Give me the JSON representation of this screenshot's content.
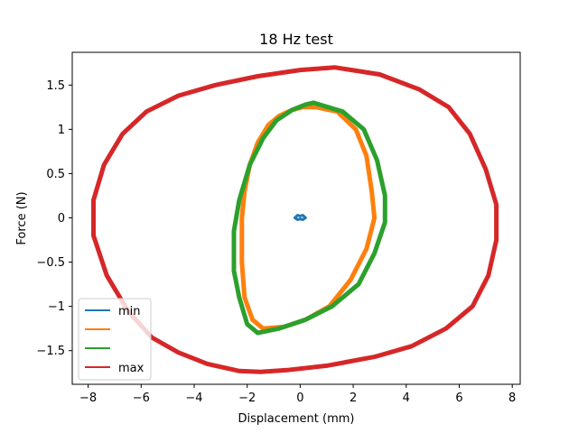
{
  "chart_data": {
    "type": "line",
    "title": "18 Hz test",
    "xlabel": "Displacement (mm)",
    "ylabel": "Force (N)",
    "xlim": [
      -8.6,
      8.3
    ],
    "ylim": [
      -1.88,
      1.87
    ],
    "xticks": [
      -8,
      -6,
      -4,
      -2,
      0,
      2,
      4,
      6,
      8
    ],
    "yticks": [
      -1.5,
      -1.0,
      -0.5,
      0.0,
      0.5,
      1.0,
      1.5
    ],
    "legend_position": "lower-left",
    "grid": false,
    "series": [
      {
        "name": "min",
        "color": "#1f77b4",
        "width": 3,
        "x": [
          -0.2,
          -0.1,
          0.0,
          0.1,
          0.2,
          0.1,
          0.0,
          -0.1,
          -0.2
        ],
        "y": [
          0.0,
          0.03,
          0.02,
          0.03,
          0.0,
          -0.02,
          -0.01,
          -0.02,
          0.0
        ]
      },
      {
        "name": "",
        "color": "#ff7f0e",
        "width": 5,
        "x": [
          0.6,
          1.4,
          2.1,
          2.5,
          2.7,
          2.8,
          2.5,
          1.9,
          1.1,
          0.2,
          -0.6,
          -1.4,
          -1.8,
          -2.1,
          -2.2,
          -2.2,
          -2.1,
          -1.9,
          -1.6,
          -1.2,
          -0.8,
          -0.3,
          0.1,
          0.6
        ],
        "y": [
          1.25,
          1.2,
          1.0,
          0.7,
          0.3,
          0.0,
          -0.35,
          -0.7,
          -1.0,
          -1.15,
          -1.23,
          -1.25,
          -1.15,
          -0.9,
          -0.5,
          0.0,
          0.3,
          0.6,
          0.85,
          1.05,
          1.15,
          1.22,
          1.25,
          1.25
        ]
      },
      {
        "name": "",
        "color": "#2ca02c",
        "width": 5,
        "x": [
          0.5,
          1.6,
          2.4,
          2.9,
          3.2,
          3.2,
          2.8,
          2.2,
          1.2,
          0.2,
          -0.8,
          -1.6,
          -2.0,
          -2.3,
          -2.5,
          -2.5,
          -2.3,
          -1.9,
          -1.4,
          -0.9,
          -0.3,
          0.2,
          0.5
        ],
        "y": [
          1.3,
          1.2,
          1.0,
          0.65,
          0.25,
          -0.05,
          -0.4,
          -0.75,
          -1.0,
          -1.15,
          -1.25,
          -1.3,
          -1.2,
          -0.9,
          -0.6,
          -0.15,
          0.2,
          0.6,
          0.9,
          1.1,
          1.22,
          1.28,
          1.3
        ]
      },
      {
        "name": "max",
        "color": "#d62728",
        "width": 5,
        "x": [
          1.3,
          3.0,
          4.5,
          5.6,
          6.4,
          7.0,
          7.4,
          7.4,
          7.1,
          6.5,
          5.5,
          4.2,
          2.8,
          1.0,
          -0.5,
          -1.5,
          -2.3,
          -3.5,
          -4.6,
          -5.6,
          -6.5,
          -7.3,
          -7.8,
          -7.8,
          -7.4,
          -6.7,
          -5.8,
          -4.6,
          -3.2,
          -1.6,
          0.0,
          1.3
        ],
        "y": [
          1.7,
          1.62,
          1.45,
          1.25,
          0.95,
          0.55,
          0.15,
          -0.25,
          -0.65,
          -1.0,
          -1.25,
          -1.45,
          -1.57,
          -1.67,
          -1.72,
          -1.74,
          -1.73,
          -1.65,
          -1.52,
          -1.35,
          -1.05,
          -0.65,
          -0.2,
          0.2,
          0.6,
          0.95,
          1.2,
          1.38,
          1.5,
          1.6,
          1.67,
          1.7
        ]
      }
    ]
  }
}
